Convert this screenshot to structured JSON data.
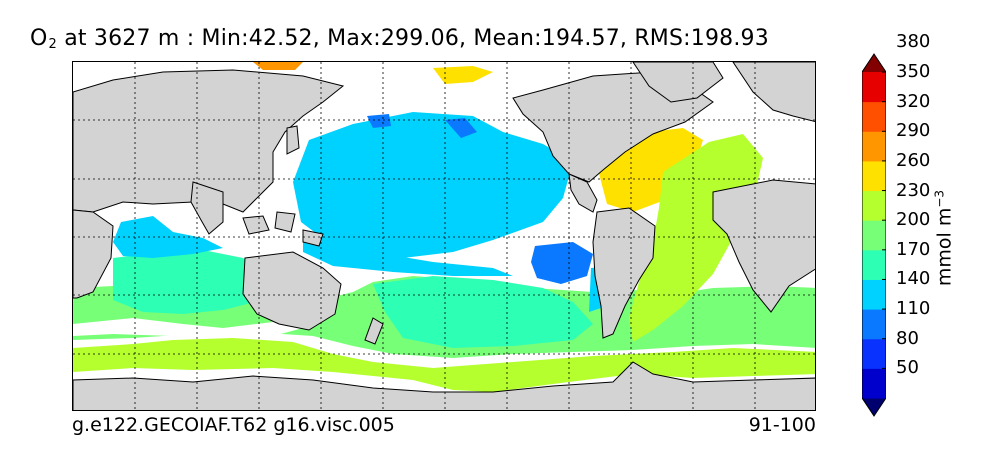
{
  "title": {
    "variable": "O",
    "subscript": "2",
    "text": " at 3627 m : Min:42.52, Max:299.06, Mean:194.57, RMS:198.93"
  },
  "footer": {
    "case": "g.e122.GECOIAF.T62 g16.visc.005",
    "years": "91-100"
  },
  "colorbar": {
    "units_label": "mmol m",
    "units_exponent": "−3",
    "levels": [
      "50",
      "80",
      "110",
      "140",
      "170",
      "200",
      "230",
      "260",
      "290",
      "320",
      "350",
      "380"
    ],
    "colors": [
      "#00006e",
      "#0000cd",
      "#0a32ff",
      "#0a78ff",
      "#00d2ff",
      "#2dffb4",
      "#78ff78",
      "#b4ff2d",
      "#ffe100",
      "#ff9600",
      "#ff5000",
      "#e60000",
      "#820000"
    ],
    "land_color": "#d3d3d3"
  },
  "map": {
    "projection": "cylindrical",
    "gridlines": "dashed"
  }
}
